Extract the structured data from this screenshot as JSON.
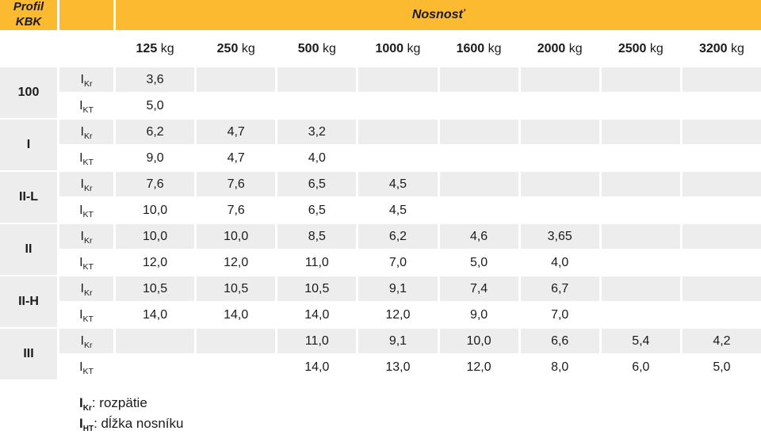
{
  "title": {
    "profile_line1": "Profil",
    "profile_line2": "KBK",
    "capacity": "Nosnosť"
  },
  "table": {
    "capacity_unit": "kg",
    "capacity_columns": [
      "125",
      "250",
      "500",
      "1000",
      "1600",
      "2000",
      "2500",
      "3200"
    ],
    "row_label": {
      "symbol": "I",
      "kr_subscript": "Kr",
      "kt_subscript": "KT"
    },
    "rows": [
      {
        "profile": "100",
        "kr": [
          "3,6",
          "",
          "",
          "",
          "",
          "",
          "",
          ""
        ],
        "kt": [
          "5,0",
          "",
          "",
          "",
          "",
          "",
          "",
          ""
        ]
      },
      {
        "profile": "I",
        "kr": [
          "6,2",
          "4,7",
          "3,2",
          "",
          "",
          "",
          "",
          ""
        ],
        "kt": [
          "9,0",
          "4,7",
          "4,0",
          "",
          "",
          "",
          "",
          ""
        ]
      },
      {
        "profile": "II-L",
        "kr": [
          "7,6",
          "7,6",
          "6,5",
          "4,5",
          "",
          "",
          "",
          ""
        ],
        "kt": [
          "10,0",
          "7,6",
          "6,5",
          "4,5",
          "",
          "",
          "",
          ""
        ]
      },
      {
        "profile": "II",
        "kr": [
          "10,0",
          "10,0",
          "8,5",
          "6,2",
          "4,6",
          "3,65",
          "",
          ""
        ],
        "kt": [
          "12,0",
          "12,0",
          "11,0",
          "7,0",
          "5,0",
          "4,0",
          "",
          ""
        ]
      },
      {
        "profile": "II-H",
        "kr": [
          "10,5",
          "10,5",
          "10,5",
          "9,1",
          "7,4",
          "6,7",
          "",
          ""
        ],
        "kt": [
          "14,0",
          "14,0",
          "14,0",
          "12,0",
          "9,0",
          "7,0",
          "",
          ""
        ]
      },
      {
        "profile": "III",
        "kr": [
          "",
          "",
          "11,0",
          "9,1",
          "10,0",
          "6,6",
          "5,4",
          "4,2"
        ],
        "kt": [
          "",
          "",
          "14,0",
          "13,0",
          "12,0",
          "8,0",
          "6,0",
          "5,0"
        ]
      }
    ]
  },
  "legend": {
    "kr": {
      "symbol": "I",
      "subscript": "Kr",
      "text": ": rozpätie"
    },
    "ht": {
      "symbol": "I",
      "subscript": "HT",
      "text": ": dĺžka nosníku"
    }
  },
  "colors": {
    "accent_orange": "#FCBA30",
    "row_gray": "#EDEDED",
    "text": "#1B1B1B",
    "background": "#FFFFFF"
  }
}
